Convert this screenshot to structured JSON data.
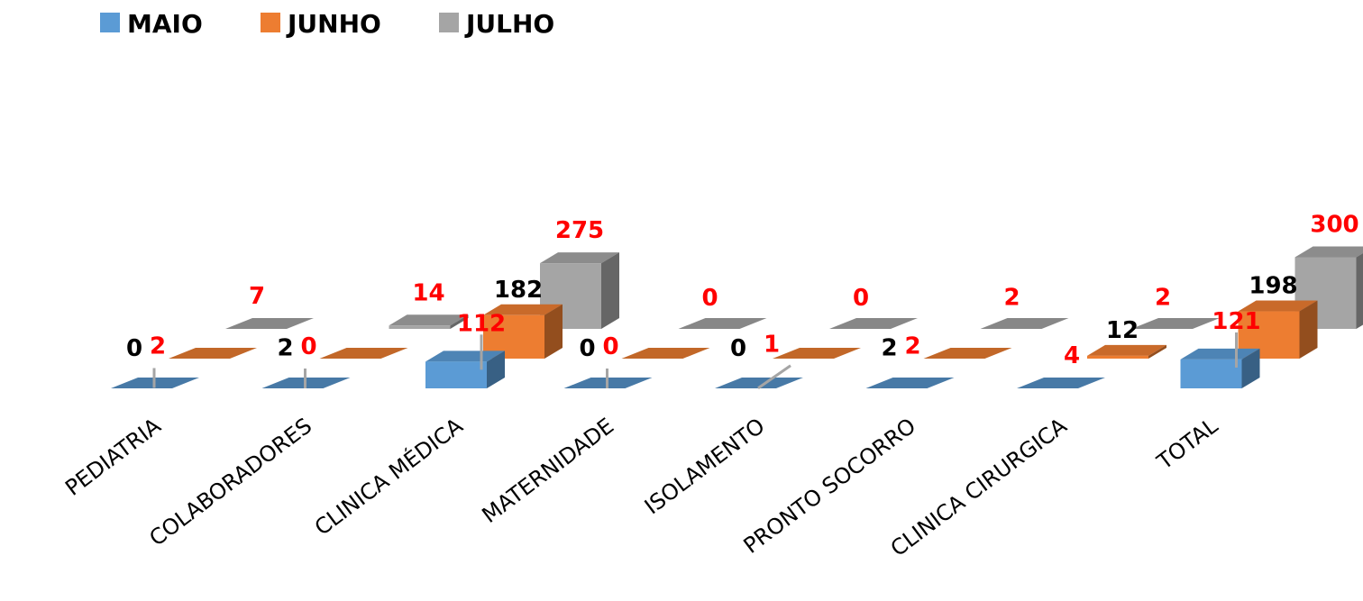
{
  "chart_data": {
    "type": "bar",
    "style": "3d-clustered-column",
    "grid": false,
    "legend_position": "top-left",
    "categories": [
      "PEDIATRIA",
      "COLABORADORES",
      "CLINICA MÉDICA",
      "MATERNIDADE",
      "ISOLAMENTO",
      "PRONTO SOCORRO",
      "CLINICA CIRURGICA",
      "TOTAL"
    ],
    "series": [
      {
        "name": "MAIO",
        "color": "#5B9BD5",
        "values": [
          2,
          0,
          112,
          0,
          1,
          2,
          4,
          121
        ],
        "labels": [
          "2",
          "0",
          "112",
          "0",
          "1",
          "2",
          "4",
          "121"
        ],
        "label_color": "#FF0000"
      },
      {
        "name": "JUNHO",
        "color": "#ED7D31",
        "values": [
          0,
          2,
          182,
          0,
          0,
          2,
          12,
          198
        ],
        "labels": [
          "0",
          "2",
          "182",
          "0",
          "0",
          "2",
          "12",
          "198"
        ],
        "label_color": "#000000"
      },
      {
        "name": "JULHO",
        "color": "#A5A5A5",
        "values": [
          7,
          14,
          275,
          0,
          0,
          2,
          2,
          300
        ],
        "labels": [
          "7",
          "14",
          "275",
          "0",
          "0",
          "2",
          "2",
          "300"
        ],
        "label_color": "#FF0000"
      }
    ],
    "title": "",
    "xlabel": "",
    "ylabel": ""
  }
}
